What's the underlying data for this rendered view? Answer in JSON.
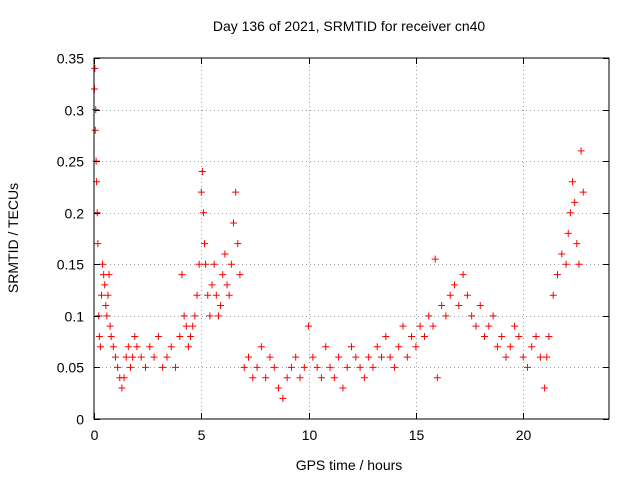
{
  "chart_data": {
    "type": "scatter",
    "title": "Day 136 of 2021, SRMTID for receiver cn40",
    "xlabel": "GPS time / hours",
    "ylabel": "SRMTID / TECUs",
    "xlim": [
      0,
      24
    ],
    "ylim": [
      0,
      0.35
    ],
    "xticks": [
      0,
      5,
      10,
      15,
      20
    ],
    "yticks": [
      0,
      0.05,
      0.1,
      0.15,
      0.2,
      0.25,
      0.3,
      0.35
    ],
    "xtick_labels": [
      "0",
      "5",
      "10",
      "15",
      "20"
    ],
    "ytick_labels": [
      "0",
      "0.05",
      "0.1",
      "0.15",
      "0.2",
      "0.25",
      "0.3",
      "0.35"
    ],
    "grid": true,
    "marker": "+",
    "color": "#ff0000",
    "series": [
      {
        "name": "SRMTID",
        "x": [
          0.02,
          0.04,
          0.06,
          0.08,
          0.1,
          0.12,
          0.15,
          0.18,
          0.22,
          0.25,
          0.3,
          0.35,
          0.4,
          0.45,
          0.5,
          0.55,
          0.6,
          0.65,
          0.7,
          0.75,
          0.8,
          0.9,
          1.0,
          1.1,
          1.2,
          1.3,
          1.4,
          1.5,
          1.6,
          1.7,
          1.8,
          1.9,
          2.0,
          2.2,
          2.4,
          2.6,
          2.8,
          3.0,
          3.2,
          3.4,
          3.6,
          3.8,
          4.0,
          4.1,
          4.2,
          4.3,
          4.4,
          4.5,
          4.6,
          4.7,
          4.8,
          4.9,
          5.0,
          5.05,
          5.1,
          5.15,
          5.2,
          5.3,
          5.4,
          5.5,
          5.6,
          5.7,
          5.8,
          5.9,
          6.0,
          6.1,
          6.2,
          6.3,
          6.4,
          6.5,
          6.6,
          6.7,
          6.8,
          7.0,
          7.2,
          7.4,
          7.6,
          7.8,
          8.0,
          8.2,
          8.4,
          8.6,
          8.8,
          9.0,
          9.2,
          9.4,
          9.6,
          9.8,
          10.0,
          10.2,
          10.4,
          10.6,
          10.8,
          11.0,
          11.2,
          11.4,
          11.6,
          11.8,
          12.0,
          12.2,
          12.4,
          12.6,
          12.8,
          13.0,
          13.2,
          13.4,
          13.6,
          13.8,
          14.0,
          14.2,
          14.4,
          14.6,
          14.8,
          15.0,
          15.2,
          15.4,
          15.6,
          15.8,
          15.9,
          16.0,
          16.2,
          16.4,
          16.6,
          16.8,
          17.0,
          17.2,
          17.4,
          17.6,
          17.8,
          18.0,
          18.2,
          18.4,
          18.6,
          18.8,
          19.0,
          19.2,
          19.4,
          19.6,
          19.8,
          20.0,
          20.2,
          20.4,
          20.6,
          20.8,
          21.0,
          21.1,
          21.2,
          21.4,
          21.6,
          21.8,
          22.0,
          22.1,
          22.2,
          22.3,
          22.4,
          22.5,
          22.6,
          22.7,
          22.8
        ],
        "y": [
          0.32,
          0.34,
          0.28,
          0.3,
          0.25,
          0.23,
          0.2,
          0.17,
          0.1,
          0.08,
          0.07,
          0.12,
          0.15,
          0.14,
          0.13,
          0.11,
          0.1,
          0.12,
          0.14,
          0.09,
          0.08,
          0.07,
          0.06,
          0.05,
          0.04,
          0.03,
          0.04,
          0.06,
          0.07,
          0.05,
          0.06,
          0.08,
          0.07,
          0.06,
          0.05,
          0.07,
          0.06,
          0.08,
          0.05,
          0.06,
          0.07,
          0.05,
          0.08,
          0.14,
          0.1,
          0.09,
          0.07,
          0.08,
          0.09,
          0.1,
          0.12,
          0.15,
          0.22,
          0.24,
          0.2,
          0.17,
          0.15,
          0.12,
          0.1,
          0.13,
          0.15,
          0.12,
          0.1,
          0.11,
          0.14,
          0.16,
          0.13,
          0.12,
          0.15,
          0.19,
          0.22,
          0.17,
          0.14,
          0.05,
          0.06,
          0.04,
          0.05,
          0.07,
          0.04,
          0.06,
          0.05,
          0.03,
          0.02,
          0.04,
          0.05,
          0.06,
          0.04,
          0.05,
          0.09,
          0.06,
          0.05,
          0.04,
          0.07,
          0.05,
          0.04,
          0.06,
          0.03,
          0.05,
          0.07,
          0.06,
          0.05,
          0.04,
          0.06,
          0.05,
          0.07,
          0.06,
          0.08,
          0.06,
          0.05,
          0.07,
          0.09,
          0.06,
          0.08,
          0.07,
          0.09,
          0.08,
          0.1,
          0.09,
          0.155,
          0.04,
          0.11,
          0.1,
          0.12,
          0.13,
          0.11,
          0.14,
          0.12,
          0.1,
          0.09,
          0.11,
          0.08,
          0.09,
          0.1,
          0.07,
          0.08,
          0.06,
          0.07,
          0.09,
          0.08,
          0.06,
          0.05,
          0.07,
          0.08,
          0.06,
          0.03,
          0.06,
          0.08,
          0.12,
          0.14,
          0.16,
          0.15,
          0.18,
          0.2,
          0.23,
          0.21,
          0.17,
          0.15,
          0.26,
          0.22
        ]
      }
    ]
  }
}
